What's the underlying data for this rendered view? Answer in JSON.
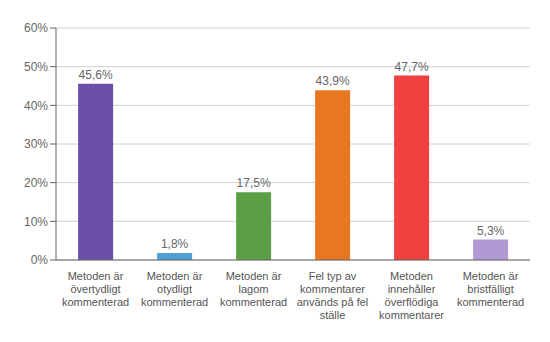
{
  "chart_data": {
    "type": "bar",
    "categories": [
      "Metoden är\növertydligt\nkommenterad",
      "Metoden är\notydligt\nkommenterad",
      "Metoden är\nlagom\nkommenterad",
      "Fel typ av\nkommentarer\nanvänds på fel\nställe",
      "Metoden\ninnehåller\növerflödiga\nkommentarer",
      "Metoden är\nbristfälligt\nkommenterad"
    ],
    "values": [
      45.6,
      1.8,
      17.5,
      43.9,
      47.7,
      5.3
    ],
    "value_labels": [
      "45,6%",
      "1,8%",
      "17,5%",
      "43,9%",
      "47,7%",
      "5,3%"
    ],
    "data_labels": true,
    "colors": [
      "#6b4ea8",
      "#4f9fd4",
      "#5a9e45",
      "#e87722",
      "#f04040",
      "#b399d4"
    ],
    "ylim": [
      0,
      60
    ],
    "yticks": [
      {
        "value": 0,
        "label": "0%"
      },
      {
        "value": 10,
        "label": "10%"
      },
      {
        "value": 20,
        "label": "20%"
      },
      {
        "value": 30,
        "label": "30%"
      },
      {
        "value": 40,
        "label": "40%"
      },
      {
        "value": 50,
        "label": "50%"
      },
      {
        "value": 60,
        "label": "60%"
      }
    ],
    "grid": true
  }
}
